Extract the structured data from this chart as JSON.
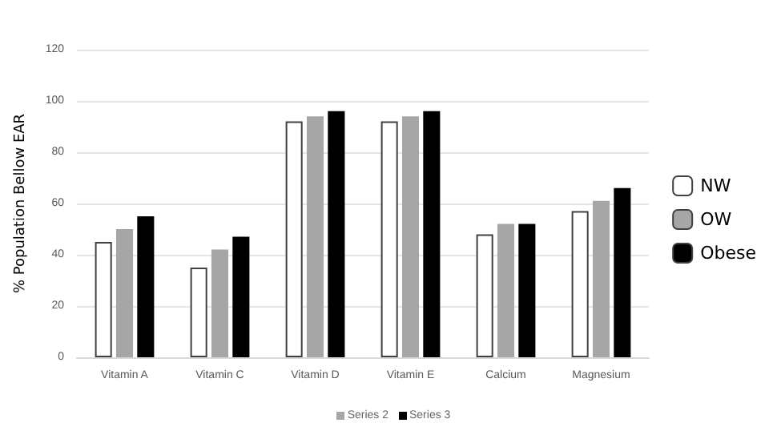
{
  "chart_data": {
    "type": "bar",
    "categories": [
      "Vitamin A",
      "Vitamin C",
      "Vitamin D",
      "Vitamin E",
      "Calcium",
      "Magnesium"
    ],
    "series": [
      {
        "name": "NW",
        "color": "#ffffff",
        "values": [
          45,
          35,
          92,
          92,
          48,
          57
        ]
      },
      {
        "name": "OW",
        "color": "#a6a6a6",
        "values": [
          50,
          42,
          94,
          94,
          52,
          61
        ]
      },
      {
        "name": "Obese",
        "color": "#000000",
        "values": [
          55,
          47,
          96,
          96,
          52,
          66
        ]
      }
    ],
    "ylabel": "% Population Bellow EAR",
    "ylim": [
      0,
      120
    ],
    "yticks": [
      0,
      20,
      40,
      60,
      80,
      100,
      120
    ],
    "grid": "y",
    "legend": "right",
    "annotations": [
      "Series 2",
      "Series 3"
    ]
  }
}
